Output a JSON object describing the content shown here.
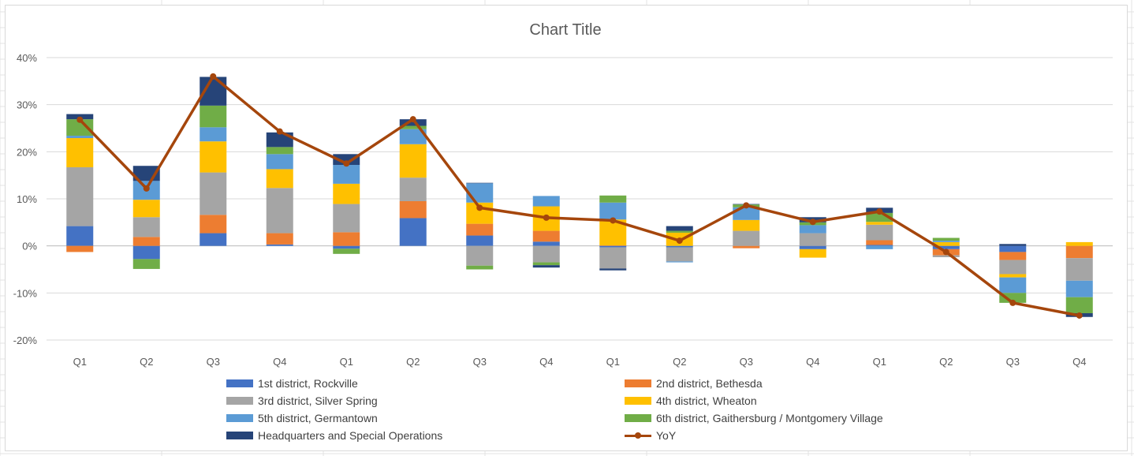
{
  "chart_data": {
    "type": "bar",
    "stacked": true,
    "title": "Chart Title",
    "xlabel": "",
    "ylabel": "",
    "ylim": [
      -0.2,
      0.4
    ],
    "y_ticks": [
      0.4,
      0.3,
      0.2,
      0.1,
      0,
      -0.1,
      -0.2
    ],
    "y_tick_labels": [
      "40%",
      "30%",
      "20%",
      "10%",
      "0%",
      "-10%",
      "-20%"
    ],
    "grid": true,
    "legend_position": "bottom",
    "categories": [
      "Q1",
      "Q2",
      "Q3",
      "Q4",
      "Q1",
      "Q2",
      "Q3",
      "Q4",
      "Q1",
      "Q2",
      "Q3",
      "Q4",
      "Q1",
      "Q2",
      "Q3",
      "Q4"
    ],
    "series": [
      {
        "name": "1st district, Rockville",
        "color": "#4472c4",
        "values": [
          0.042,
          -0.028,
          0.027,
          0.003,
          -0.006,
          0.059,
          0.022,
          0.009,
          -0.003,
          -0.003,
          0,
          -0.007,
          0.002,
          -0.007,
          -0.013,
          0
        ]
      },
      {
        "name": "2nd district, Bethesda",
        "color": "#ed7d31",
        "values": [
          -0.013,
          0.019,
          0.039,
          0.024,
          0.029,
          0.036,
          0.025,
          0.023,
          0.001,
          0,
          -0.005,
          0,
          0.01,
          -0.013,
          -0.017,
          -0.026
        ]
      },
      {
        "name": "3rd district, Silver Spring",
        "color": "#a5a5a5",
        "values": [
          0.125,
          0.042,
          0.09,
          0.096,
          0.06,
          0.05,
          -0.042,
          -0.035,
          -0.045,
          -0.03,
          0.032,
          0.027,
          0.033,
          -0.004,
          -0.03,
          -0.048
        ]
      },
      {
        "name": "4th district, Wheaton",
        "color": "#ffc000",
        "values": [
          0.062,
          0.037,
          0.066,
          0.04,
          0.043,
          0.071,
          0.045,
          0.052,
          0.055,
          0.028,
          0.023,
          -0.018,
          0.006,
          0.008,
          -0.007,
          0.008
        ]
      },
      {
        "name": "5th district, Germantown",
        "color": "#5b9bd5",
        "values": [
          0.005,
          0.04,
          0.03,
          0.032,
          0.04,
          0.032,
          0.041,
          0.022,
          0.036,
          -0.002,
          0.027,
          0.017,
          -0.007,
          0.003,
          -0.033,
          -0.035
        ]
      },
      {
        "name": "6th district, Gaithersburg / Montgomery Village",
        "color": "#70ad47",
        "values": [
          0.035,
          -0.021,
          0.046,
          0.015,
          -0.011,
          0.007,
          -0.008,
          -0.006,
          0.015,
          0.004,
          0.006,
          0.006,
          0.019,
          0.006,
          -0.021,
          -0.034
        ]
      },
      {
        "name": "Headquarters and Special Operations",
        "color": "#264478",
        "values": [
          0.011,
          0.032,
          0.061,
          0.031,
          0.023,
          0.014,
          0.001,
          -0.005,
          -0.004,
          0.01,
          0.001,
          0.011,
          0.011,
          0,
          0.004,
          -0.008
        ]
      }
    ],
    "line": {
      "name": "YoY",
      "color": "#a5460c",
      "values": [
        0.268,
        0.122,
        0.36,
        0.243,
        0.175,
        0.269,
        0.081,
        0.06,
        0.054,
        0.011,
        0.086,
        0.051,
        0.073,
        -0.013,
        -0.121,
        -0.148
      ]
    }
  }
}
